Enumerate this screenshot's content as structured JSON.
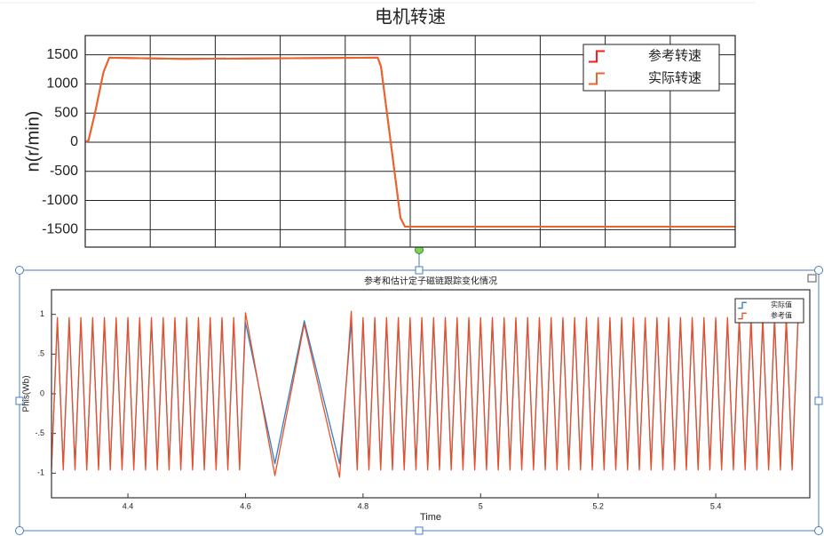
{
  "chart_data": [
    {
      "type": "line",
      "title": "电机转速",
      "y_label": "n(r/min)",
      "grid": true,
      "legend": "upper right",
      "x": [
        0,
        0.05,
        0.15,
        0.28,
        0.37,
        1.5,
        4.5,
        4.55,
        4.7,
        4.85,
        4.92,
        10
      ],
      "xlim": [
        0,
        10
      ],
      "ylim": [
        -1800,
        1830
      ],
      "yticks": [
        -1500,
        -1000,
        -500,
        0,
        500,
        1000,
        1500
      ],
      "series": [
        {
          "name": "参考转速",
          "color": "#ff1a1a",
          "values": [
            0,
            30,
            500,
            1200,
            1450,
            1430,
            1450,
            1300,
            0,
            -1300,
            -1450,
            -1450
          ]
        },
        {
          "name": "实际转速",
          "color": "#e8662e",
          "values": [
            0,
            30,
            500,
            1200,
            1450,
            1430,
            1450,
            1300,
            0,
            -1300,
            -1450,
            -1450
          ]
        }
      ]
    },
    {
      "type": "line",
      "title": "参考和估计定子磁链跟踪变化情况",
      "x_label": "Time",
      "y_label": "Phis(Wb)",
      "grid": false,
      "legend": "upper right",
      "x": [
        4.27,
        4.28,
        4.29,
        4.3,
        4.31,
        4.32,
        4.33,
        4.34,
        4.35,
        4.36,
        4.37,
        4.38,
        4.39,
        4.4,
        4.41,
        4.42,
        4.43,
        4.44,
        4.45,
        4.46,
        4.47,
        4.48,
        4.49,
        4.5,
        4.51,
        4.52,
        4.53,
        4.54,
        4.55,
        4.56,
        4.57,
        4.58,
        4.59,
        4.6,
        4.65,
        4.7,
        4.76,
        4.78,
        4.79,
        4.8,
        4.81,
        4.82,
        4.83,
        4.84,
        4.85,
        4.86,
        4.87,
        4.88,
        4.89,
        4.9,
        4.91,
        4.92,
        4.93,
        4.94,
        4.95,
        4.96,
        4.97,
        4.98,
        4.99,
        5,
        5.01,
        5.02,
        5.03,
        5.04,
        5.05,
        5.06,
        5.07,
        5.08,
        5.09,
        5.1,
        5.11,
        5.12,
        5.13,
        5.14,
        5.15,
        5.16,
        5.17,
        5.18,
        5.19,
        5.2,
        5.21,
        5.22,
        5.23,
        5.24,
        5.25,
        5.26,
        5.27,
        5.28,
        5.29,
        5.3,
        5.31,
        5.32,
        5.33,
        5.34,
        5.35,
        5.36,
        5.37,
        5.38,
        5.39,
        5.4,
        5.41,
        5.42,
        5.43,
        5.44,
        5.45,
        5.46,
        5.47,
        5.48,
        5.49,
        5.5,
        5.51,
        5.52,
        5.53,
        5.54
      ],
      "xlim": [
        4.27,
        5.56
      ],
      "xticks": [
        4.4,
        4.6,
        4.8,
        5,
        5.2,
        5.4
      ],
      "ylim": [
        -1.31,
        1.31
      ],
      "yticks": [
        -1,
        {
          "value": -0.5,
          "label": "-.5"
        },
        0,
        {
          "value": 0.5,
          "label": ".5"
        },
        1
      ],
      "series": [
        {
          "name": "实际值",
          "color": "#2e7fc4",
          "values": [
            -0.92,
            0.92,
            -0.92,
            0.92,
            -0.92,
            0.92,
            -0.92,
            0.92,
            -0.92,
            0.92,
            -0.92,
            0.92,
            -0.92,
            0.92,
            -0.92,
            0.92,
            -0.92,
            0.92,
            -0.92,
            0.92,
            -0.92,
            0.92,
            -0.92,
            0.92,
            -0.92,
            0.92,
            -0.92,
            0.92,
            -0.92,
            0.92,
            -0.92,
            0.92,
            -0.92,
            0.9,
            -0.88,
            0.92,
            -0.88,
            0.9,
            -0.92,
            0.92,
            -0.92,
            0.92,
            -0.92,
            0.92,
            -0.92,
            0.92,
            -0.92,
            0.92,
            -0.92,
            0.92,
            -0.92,
            0.92,
            -0.92,
            0.92,
            -0.92,
            0.92,
            -0.92,
            0.92,
            -0.92,
            0.92,
            -0.92,
            0.92,
            -0.92,
            0.92,
            -0.92,
            0.92,
            -0.92,
            0.92,
            -0.92,
            0.92,
            -0.92,
            0.92,
            -0.92,
            0.92,
            -0.92,
            0.92,
            -0.92,
            0.92,
            -0.92,
            0.92,
            -0.92,
            0.92,
            -0.92,
            0.92,
            -0.92,
            0.92,
            -0.92,
            0.92,
            -0.92,
            0.92,
            -0.92,
            0.92,
            -0.92,
            0.92,
            -0.92,
            0.92,
            -0.92,
            0.92,
            -0.92,
            0.92,
            -0.92,
            0.92,
            -0.92,
            0.92,
            -0.92,
            0.92,
            -0.92,
            0.92,
            -0.92,
            0.92,
            -0.92,
            0.92,
            -0.92,
            0.92
          ]
        },
        {
          "name": "参考值",
          "color": "#e8502a",
          "values": [
            -0.96,
            0.96,
            -0.96,
            0.96,
            -0.96,
            0.96,
            -0.96,
            0.96,
            -0.96,
            0.96,
            -0.96,
            0.96,
            -0.96,
            0.96,
            -0.96,
            0.96,
            -0.96,
            0.96,
            -0.96,
            0.96,
            -0.96,
            0.96,
            -0.96,
            0.96,
            -0.96,
            0.96,
            -0.96,
            0.96,
            -0.96,
            0.96,
            -0.96,
            0.96,
            -0.96,
            1.02,
            -1.03,
            0.88,
            -1.05,
            1.04,
            -0.96,
            0.96,
            -0.96,
            0.96,
            -0.96,
            0.96,
            -0.96,
            0.96,
            -0.96,
            0.96,
            -0.96,
            0.96,
            -0.96,
            0.96,
            -0.96,
            0.96,
            -0.96,
            0.96,
            -0.96,
            0.96,
            -0.96,
            0.96,
            -0.96,
            0.96,
            -0.96,
            0.96,
            -0.96,
            0.96,
            -0.96,
            0.96,
            -0.96,
            0.96,
            -0.96,
            0.96,
            -0.96,
            0.96,
            -0.96,
            0.96,
            -0.96,
            0.96,
            -0.96,
            0.96,
            -0.96,
            0.96,
            -0.96,
            0.96,
            -0.96,
            0.96,
            -0.96,
            0.96,
            -0.96,
            0.96,
            -0.96,
            0.96,
            -0.96,
            0.96,
            -0.96,
            0.96,
            -0.96,
            0.96,
            -0.96,
            0.96,
            -0.96,
            0.96,
            -0.96,
            0.96,
            -0.96,
            0.96,
            -0.96,
            0.96,
            -0.96,
            0.96,
            -0.96,
            0.96,
            -0.96,
            0.96
          ]
        }
      ]
    }
  ]
}
